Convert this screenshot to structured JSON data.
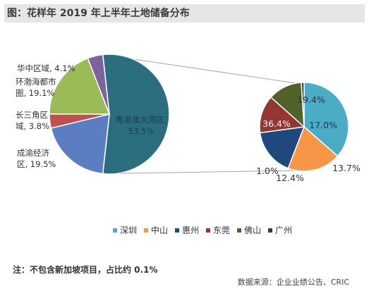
{
  "header": {
    "title": "图：花样年 2019 年上半年土地储备分布"
  },
  "footer": {
    "note": "注：不包含新加坡项目，占比约 0.1%",
    "source": "数据来源：企业业绩公告、CRIC"
  },
  "chart_data": [
    {
      "type": "pie",
      "slices": [
        {
          "label_lines": [
            "粤港澳大湾区,",
            "53.5%"
          ],
          "value": 53.5,
          "color": "#2a6e80"
        },
        {
          "label_lines": [
            "成渝经济",
            "区, 19.5%"
          ],
          "value": 19.5,
          "color": "#5b7ec2"
        },
        {
          "label_lines": [
            "长三角区",
            "域, 3.8%"
          ],
          "value": 3.8,
          "color": "#c0504d"
        },
        {
          "label_lines": [
            "环渤海都市",
            "圈, 19.1%"
          ],
          "value": 19.1,
          "color": "#9bbb59"
        },
        {
          "label_lines": [
            "华中区域, 4.1%"
          ],
          "value": 4.1,
          "color": "#7c62a0"
        }
      ]
    },
    {
      "type": "pie",
      "slices": [
        {
          "name": "深圳",
          "label": "36.4%",
          "value": 36.4,
          "color": "#4bacc6"
        },
        {
          "name": "中山",
          "label": "19.4%",
          "value": 19.4,
          "color": "#f79646"
        },
        {
          "name": "惠州",
          "label": "17.0%",
          "value": 17.0,
          "color": "#1f497d"
        },
        {
          "name": "东莞",
          "label": "13.7%",
          "value": 13.7,
          "color": "#943634"
        },
        {
          "name": "佛山",
          "label": "12.4%",
          "value": 12.4,
          "color": "#4f6228"
        },
        {
          "name": "广州",
          "label": "1.0%",
          "value": 1.0,
          "color": "#3f3151"
        }
      ]
    }
  ]
}
